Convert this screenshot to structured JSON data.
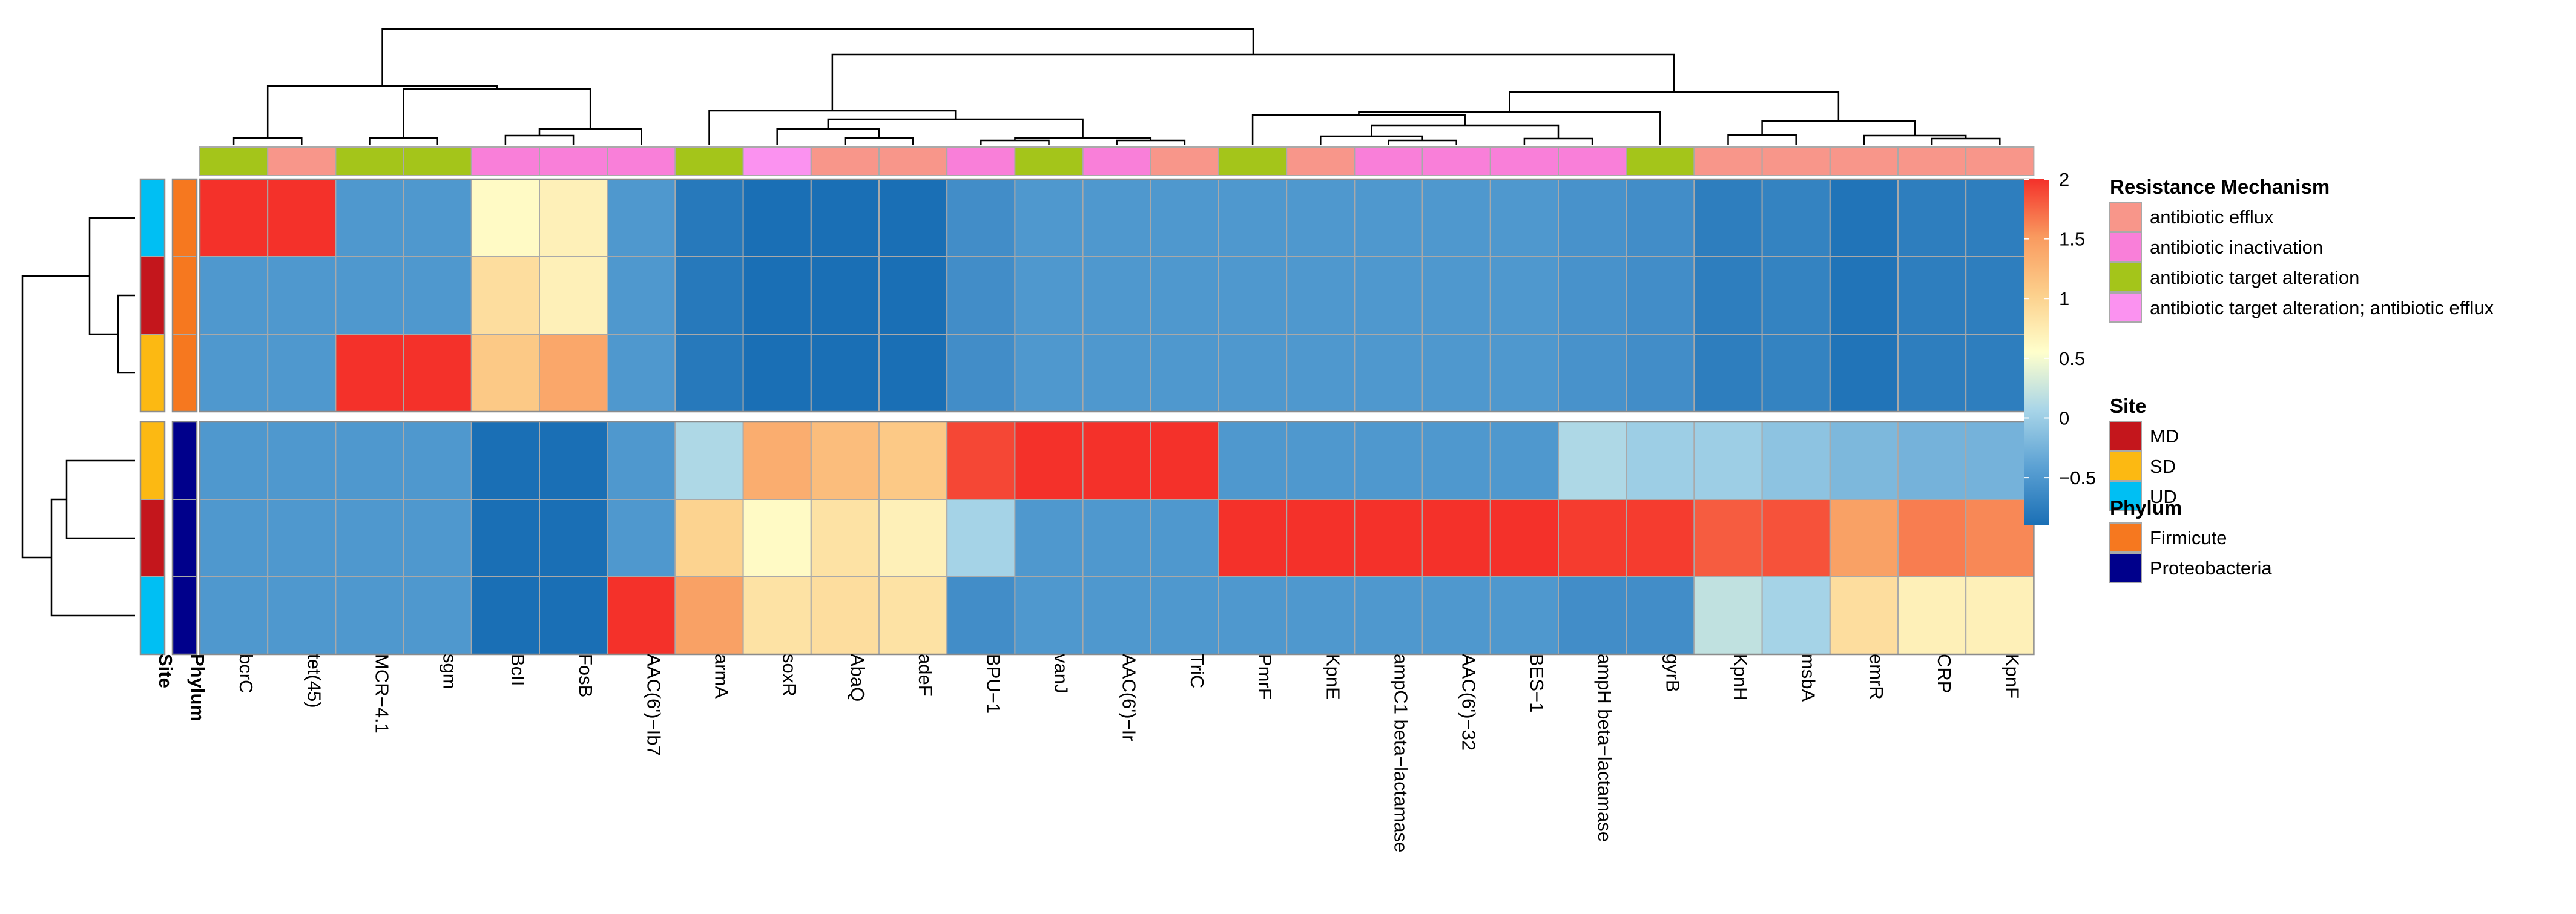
{
  "chart_data": {
    "type": "heatmap",
    "title": "",
    "xlabel": "",
    "ylabel": "",
    "columns": [
      "bcrC",
      "tet(45)",
      "MCR−4.1",
      "sgm",
      "BcII",
      "FosB",
      "AAC(6')−Ib7",
      "armA",
      "soxR",
      "AbaQ",
      "adeF",
      "BPU−1",
      "vanJ",
      "AAC(6')−Ir",
      "TriC",
      "PmrF",
      "KpnE",
      "ampC1 beta−lactamase",
      "AAC(6')−32",
      "BES−1",
      "ampH beta−lactamase",
      "gyrB",
      "KpnH",
      "msbA",
      "emrR",
      "CRP",
      "KpnF"
    ],
    "column_mechanism": [
      2,
      0,
      2,
      2,
      1,
      1,
      1,
      2,
      3,
      0,
      0,
      1,
      2,
      1,
      0,
      2,
      0,
      1,
      1,
      1,
      1,
      2,
      0,
      0,
      0,
      0,
      0
    ],
    "row_site": [
      2,
      0,
      1,
      1,
      0,
      2
    ],
    "row_phylum": [
      0,
      0,
      0,
      1,
      1,
      1
    ],
    "row_gap_after": 3,
    "values": [
      [
        2.0,
        2.0,
        -0.5,
        -0.5,
        0.6,
        0.7,
        -0.5,
        -0.8,
        -0.9,
        -0.9,
        -0.9,
        -0.6,
        -0.5,
        -0.5,
        -0.5,
        -0.5,
        -0.5,
        -0.5,
        -0.5,
        -0.5,
        -0.55,
        -0.6,
        -0.75,
        -0.7,
        -0.85,
        -0.75,
        -0.75
      ],
      [
        -0.5,
        -0.5,
        -0.5,
        -0.5,
        0.9,
        0.7,
        -0.5,
        -0.8,
        -0.9,
        -0.9,
        -0.9,
        -0.6,
        -0.5,
        -0.5,
        -0.5,
        -0.5,
        -0.5,
        -0.5,
        -0.5,
        -0.5,
        -0.55,
        -0.6,
        -0.75,
        -0.7,
        -0.85,
        -0.75,
        -0.75
      ],
      [
        -0.5,
        -0.5,
        2.0,
        2.0,
        1.1,
        1.4,
        -0.5,
        -0.8,
        -0.9,
        -0.9,
        -0.9,
        -0.6,
        -0.5,
        -0.5,
        -0.5,
        -0.5,
        -0.5,
        -0.5,
        -0.5,
        -0.5,
        -0.55,
        -0.6,
        -0.75,
        -0.7,
        -0.85,
        -0.75,
        -0.75
      ],
      [
        -0.5,
        -0.5,
        -0.5,
        -0.5,
        -0.9,
        -0.9,
        -0.5,
        0.1,
        1.35,
        1.2,
        1.1,
        1.9,
        2.0,
        2.0,
        2.0,
        -0.5,
        -0.5,
        -0.5,
        -0.5,
        -0.5,
        0.1,
        0.0,
        0.0,
        -0.1,
        -0.2,
        -0.25,
        -0.25
      ],
      [
        -0.5,
        -0.5,
        -0.5,
        -0.5,
        -0.9,
        -0.9,
        -0.5,
        1.0,
        0.6,
        0.85,
        0.7,
        0.05,
        -0.5,
        -0.5,
        -0.5,
        2.0,
        2.0,
        2.0,
        2.0,
        2.0,
        1.95,
        1.95,
        1.8,
        1.85,
        1.45,
        1.65,
        1.6
      ],
      [
        -0.5,
        -0.5,
        -0.5,
        -0.5,
        -0.9,
        -0.9,
        2.0,
        1.45,
        0.85,
        0.9,
        0.85,
        -0.6,
        -0.5,
        -0.5,
        -0.5,
        -0.5,
        -0.5,
        -0.5,
        -0.5,
        -0.5,
        -0.6,
        -0.6,
        0.2,
        0.05,
        0.9,
        0.7,
        0.7
      ]
    ],
    "row_annotation_labels": [
      "Site",
      "Phylum"
    ],
    "colorbar": {
      "ticks": [
        2,
        1.5,
        1,
        0.5,
        0,
        -0.5
      ],
      "tick_labels": [
        "2",
        "1.5",
        "1",
        "0.5",
        "0",
        "−0.5"
      ],
      "range": [
        -0.9,
        2.0
      ],
      "colors": [
        "#1a6fb5",
        "#5aa0d3",
        "#a8d5e8",
        "#ffffcc",
        "#fcd08c",
        "#f99a5f",
        "#f4312a"
      ]
    },
    "legend": {
      "groups": [
        {
          "title": "Resistance Mechanism",
          "entries": [
            {
              "label": "antibiotic efflux",
              "color": "#f8968a"
            },
            {
              "label": "antibiotic inactivation",
              "color": "#f97fd9"
            },
            {
              "label": "antibiotic target alteration",
              "color": "#a4c51a"
            },
            {
              "label": "antibiotic target alteration; antibiotic efflux",
              "color": "#fb92f0"
            }
          ]
        },
        {
          "title": "Site",
          "entries": [
            {
              "label": "MD",
              "color": "#c4161c"
            },
            {
              "label": "SD",
              "color": "#fcb912"
            },
            {
              "label": "UD",
              "color": "#00bff3"
            }
          ]
        },
        {
          "title": "Phylum",
          "entries": [
            {
              "label": "Firmicute",
              "color": "#f6781f"
            },
            {
              "label": "Proteobacteria",
              "color": "#00008b"
            }
          ]
        }
      ]
    }
  }
}
